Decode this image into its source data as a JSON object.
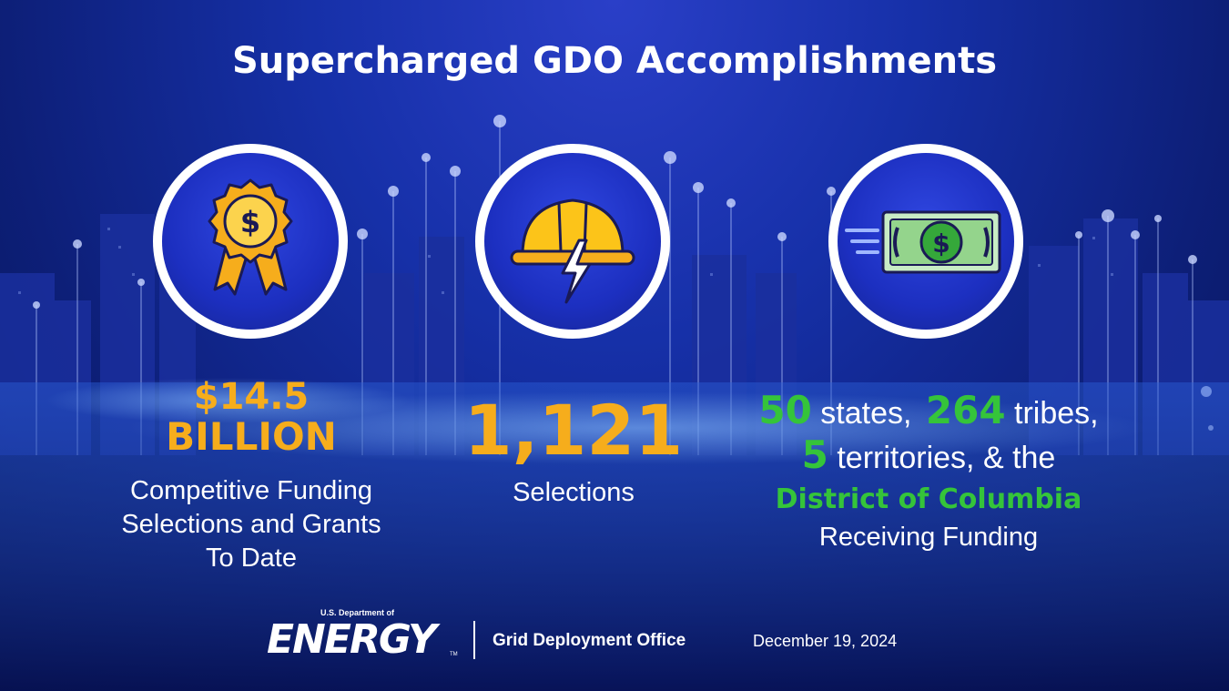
{
  "title": "Supercharged GDO Accomplishments",
  "stats": [
    {
      "icon": "award-ribbon-dollar-icon",
      "value_line1": "$14.5",
      "value_line2": "BILLION",
      "description": [
        "Competitive Funding",
        "Selections and Grants",
        "To Date"
      ]
    },
    {
      "icon": "hard-hat-lightning-icon",
      "value": "1,121",
      "description": "Selections"
    },
    {
      "icon": "moving-dollar-bill-icon",
      "count_states": "50",
      "label_states": " states,",
      "count_tribes": "264",
      "label_tribes": " tribes,",
      "count_territories": "5",
      "label_territories": " territories, & the",
      "district": "District of Columbia",
      "description": "Receiving Funding"
    }
  ],
  "footer": {
    "department_small": "U.S. Department of",
    "department_word": "ENERGY",
    "trademark": "TM",
    "office": "Grid Deployment Office",
    "date": "December 19, 2024"
  },
  "colors": {
    "gold": "#f6ad1c",
    "green": "#35c43a",
    "background": "#1630a8"
  }
}
